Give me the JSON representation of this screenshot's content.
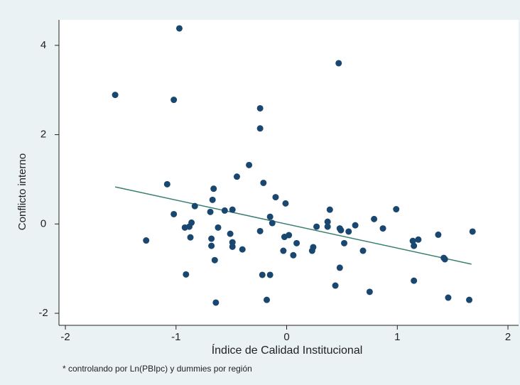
{
  "chart_data": {
    "type": "scatter",
    "xlabel": "Índice de Calidad Institucional",
    "ylabel": "Conflicto interno",
    "note": "* controlando por Ln(PBIpc) y dummies por región",
    "xlim": [
      -2.058,
      2.096
    ],
    "ylim": [
      -2.27,
      4.57
    ],
    "xticks": [
      -2,
      -1,
      0,
      1,
      2
    ],
    "yticks": [
      -2,
      0,
      2,
      4
    ],
    "points": {
      "color": "#1a476f",
      "x": [
        -0.97,
        0.47,
        -1.55,
        -1.02,
        -0.24,
        -0.24,
        -0.34,
        -0.45,
        -1.08,
        -0.21,
        -0.66,
        -0.67,
        -0.1,
        -0.01,
        -0.83,
        -1.02,
        -0.69,
        -0.56,
        -0.49,
        -0.15,
        -0.13,
        0.39,
        0.99,
        0.79,
        -0.86,
        -0.88,
        -0.92,
        -0.62,
        0.27,
        0.37,
        0.37,
        0.48,
        0.49,
        0.56,
        0.62,
        0.87,
        -1.27,
        -0.87,
        -0.68,
        -0.68,
        -0.51,
        -0.49,
        -0.49,
        -0.4,
        -0.24,
        -0.02,
        0.02,
        0.09,
        -0.03,
        0.06,
        0.24,
        0.23,
        0.52,
        0.69,
        1.14,
        1.15,
        1.19,
        1.37,
        1.68,
        1.42,
        1.43,
        -0.65,
        -0.91,
        -0.22,
        -0.15,
        0.48,
        1.15,
        0.44,
        0.75,
        -0.18,
        -0.64,
        1.46,
        1.65
      ],
      "values": [
        4.38,
        3.6,
        2.89,
        2.78,
        2.59,
        2.14,
        1.32,
        1.06,
        0.89,
        0.92,
        0.79,
        0.54,
        0.6,
        0.46,
        0.4,
        0.22,
        0.27,
        0.3,
        0.32,
        0.16,
        0.02,
        0.32,
        0.33,
        0.11,
        0.03,
        -0.06,
        -0.08,
        -0.08,
        -0.06,
        0.05,
        -0.06,
        -0.1,
        -0.14,
        -0.17,
        -0.03,
        -0.1,
        -0.37,
        -0.3,
        -0.33,
        -0.49,
        -0.22,
        -0.41,
        -0.51,
        -0.57,
        -0.16,
        -0.29,
        -0.25,
        -0.43,
        -0.6,
        -0.7,
        -0.52,
        -0.6,
        -0.43,
        -0.6,
        -0.38,
        -0.49,
        -0.35,
        -0.24,
        -0.17,
        -0.76,
        -0.79,
        -0.81,
        -1.13,
        -1.14,
        -1.14,
        -0.98,
        -1.27,
        -1.38,
        -1.52,
        -1.7,
        -1.76,
        -1.65,
        -1.7
      ]
    },
    "fit_line": {
      "color": "#3a7f72",
      "x": [
        -1.55,
        1.67
      ],
      "values": [
        0.83,
        -0.9
      ]
    }
  }
}
